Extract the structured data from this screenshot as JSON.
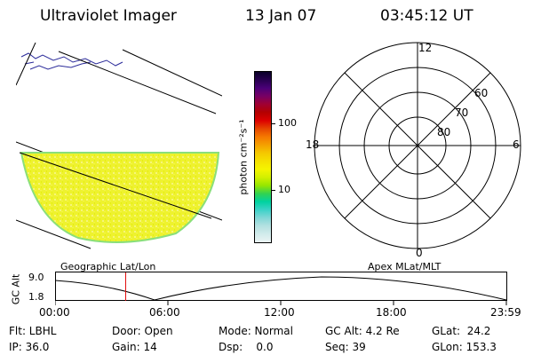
{
  "header": {
    "title": "Ultraviolet Imager",
    "date": "13 Jan 07",
    "time": "03:45:12 UT"
  },
  "colorbar": {
    "unit_label": "photon cm⁻²s⁻¹",
    "ticks": [
      {
        "label": "100",
        "value": 100
      },
      {
        "label": "10",
        "value": 10
      }
    ],
    "colors": [
      "#ebf5f5",
      "#d2ebeb",
      "#b4e1e1",
      "#82d7d7",
      "#3cd2c8",
      "#00d2a0",
      "#32d250",
      "#96e600",
      "#d2f000",
      "#f5f500",
      "#f5e100",
      "#f5c800",
      "#f5a000",
      "#f57800",
      "#e64600",
      "#dc0000",
      "#b40000",
      "#a00032",
      "#780064",
      "#4b0078",
      "#280050",
      "#0a0028"
    ]
  },
  "polar_plot": {
    "clock_labels": [
      "12",
      "6",
      "0",
      "18"
    ],
    "lat_labels": [
      "60",
      "70",
      "80"
    ]
  },
  "map_label": "Geographic Lat/Lon",
  "polar_label": "Apex MLat/MLT",
  "timeline": {
    "y_axis_title": "GC Alt",
    "y_ticks": [
      "9.0",
      "1.8"
    ],
    "x_ticks": [
      "00:00",
      "06:00",
      "12:00",
      "18:00",
      "23:59"
    ],
    "marker_time": "03:45"
  },
  "info": {
    "filter": "Flt: LBHL",
    "door": "Door: Open",
    "mode": "Mode: Normal",
    "gc_alt": "GC Alt: 4.2 Re",
    "glat": "GLat:  24.2",
    "ip": "IP: 36.0",
    "gain": "Gain: 14",
    "dsp": "Dsp:    0.0",
    "seq": "Seq: 39",
    "glon": "GLon: 153.3"
  }
}
